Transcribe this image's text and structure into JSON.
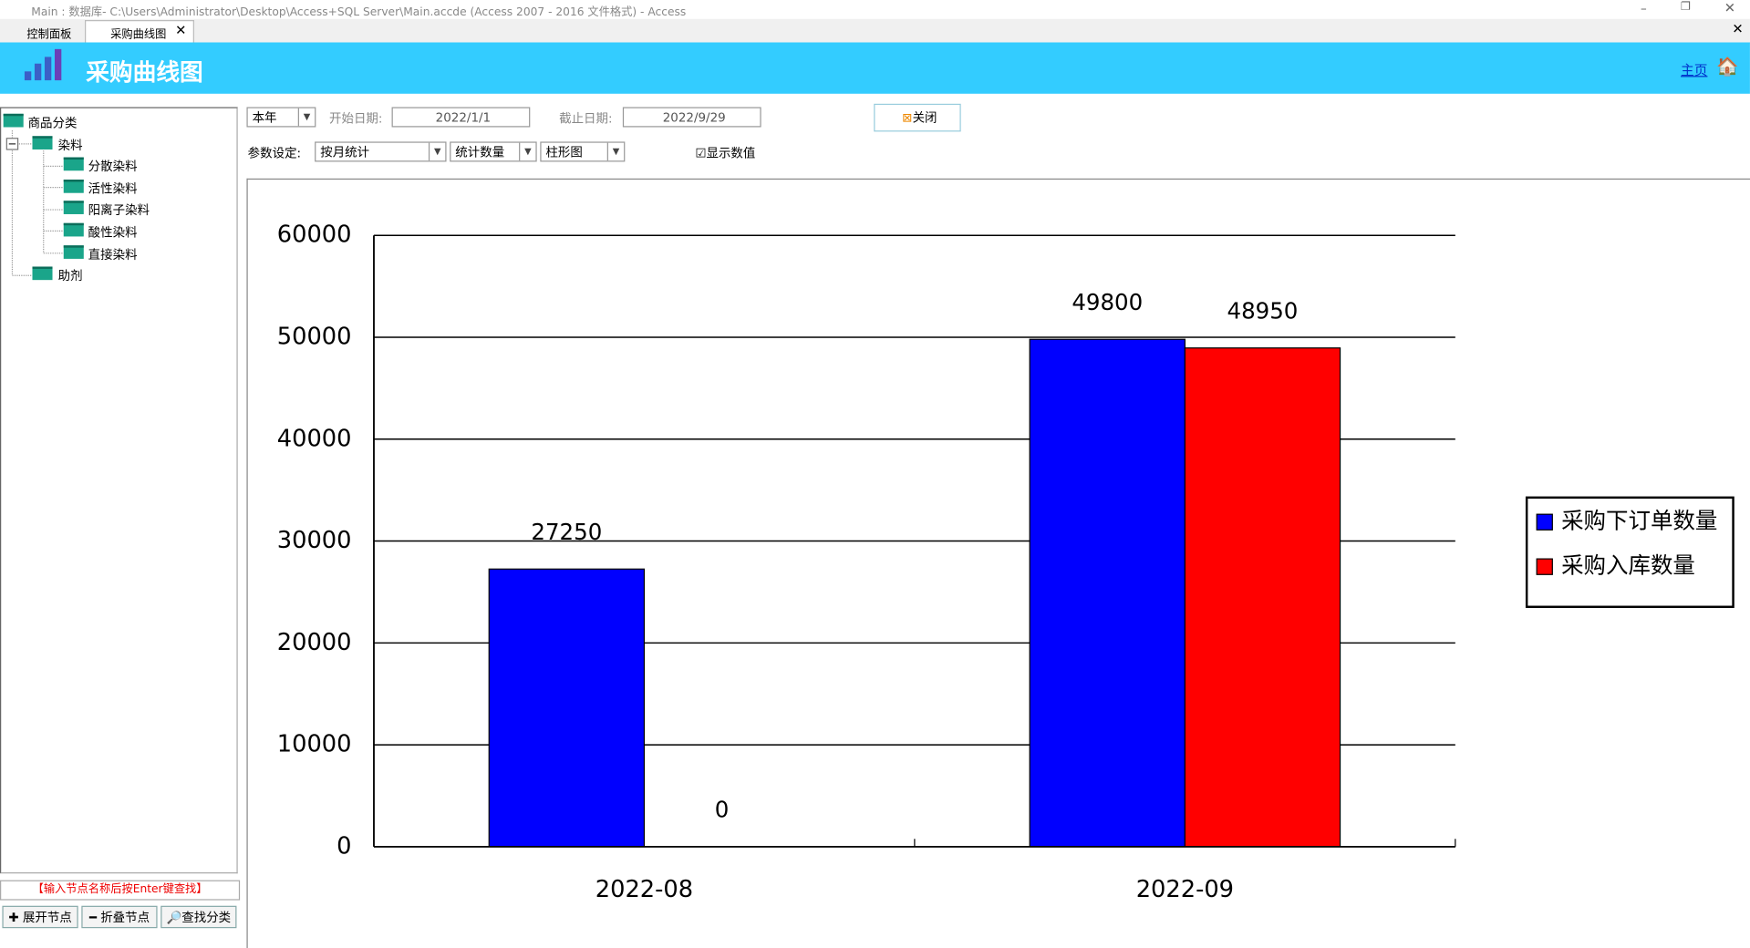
{
  "window": {
    "title": "Main : 数据库- C:\\Users\\Administrator\\Desktop\\Access+SQL Server\\Main.accde (Access 2007 - 2016 文件格式) - Access",
    "tabs": [
      "控制面板",
      "采购曲线图"
    ]
  },
  "header": {
    "title": "采购曲线图",
    "home_link": "主页"
  },
  "tree": {
    "root": "商品分类",
    "nodes": [
      {
        "label": "染料",
        "children": [
          "分散染料",
          "活性染料",
          "阳离子染料",
          "酸性染料",
          "直接染料"
        ]
      },
      {
        "label": "助剂",
        "children": []
      }
    ],
    "hint": "【输入节点名称后按Enter键查找】",
    "buttons": [
      "展开节点",
      "折叠节点",
      "查找分类"
    ]
  },
  "controls": {
    "period": "本年",
    "start_label": "开始日期:",
    "start_date": "2022/1/1",
    "end_label": "截止日期:",
    "end_date": "2022/9/29",
    "close": "关闭",
    "params_label": "参数设定:",
    "group_by": "按月统计",
    "measure": "统计数量",
    "chart_kind": "柱形图",
    "show_values_label": "显示数值"
  },
  "chart_data": {
    "type": "bar",
    "categories": [
      "2022-08",
      "2022-09"
    ],
    "series": [
      {
        "name": "采购下订单数量",
        "color": "#0000ff",
        "values": [
          27250,
          49800
        ]
      },
      {
        "name": "采购入库数量",
        "color": "#ff0000",
        "values": [
          0,
          48950
        ]
      }
    ],
    "ylim": [
      0,
      60000
    ],
    "yticks": [
      0,
      10000,
      20000,
      30000,
      40000,
      50000,
      60000
    ],
    "grid": true,
    "show_values": true,
    "legend_position": "right"
  }
}
